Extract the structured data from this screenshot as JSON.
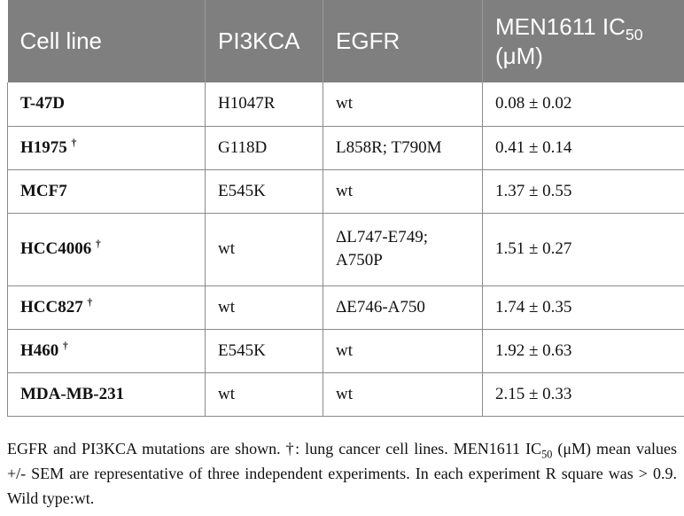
{
  "table": {
    "headers": {
      "cell_line": "Cell line",
      "pi3kca": "PI3KCA",
      "egfr": "EGFR",
      "ic50_prefix": "MEN1611 IC",
      "ic50_sub": "50",
      "ic50_unit": "(μM)"
    },
    "rows": [
      {
        "cell_line": "T-47D",
        "dagger": "",
        "pi3kca": "H1047R",
        "egfr": "wt",
        "egfr2": "",
        "ic50": "0.08 ± 0.02"
      },
      {
        "cell_line": "H1975",
        "dagger": "†",
        "pi3kca": "G118D",
        "egfr": "L858R; T790M",
        "egfr2": "",
        "ic50": "0.41 ± 0.14"
      },
      {
        "cell_line": "MCF7",
        "dagger": "",
        "pi3kca": "E545K",
        "egfr": "wt",
        "egfr2": "",
        "ic50": "1.37 ± 0.55"
      },
      {
        "cell_line": "HCC4006",
        "dagger": "†",
        "pi3kca": "wt",
        "egfr": "ΔL747-E749;",
        "egfr2": "A750P",
        "ic50": "1.51 ± 0.27"
      },
      {
        "cell_line": "HCC827",
        "dagger": "†",
        "pi3kca": "wt",
        "egfr": "ΔE746-A750",
        "egfr2": "",
        "ic50": "1.74 ± 0.35"
      },
      {
        "cell_line": "H460",
        "dagger": "†",
        "pi3kca": "E545K",
        "egfr": "wt",
        "egfr2": "",
        "ic50": "1.92 ± 0.63"
      },
      {
        "cell_line": "MDA-MB-231",
        "dagger": "",
        "pi3kca": "wt",
        "egfr": "wt",
        "egfr2": "",
        "ic50": "2.15 ± 0.33"
      }
    ]
  },
  "footnote": {
    "part1": "EGFR and PI3KCA mutations are shown. †: lung cancer cell lines. MEN1611 IC",
    "sub": "50",
    "part2": " (μM) mean values +/- SEM are representative of three independent experiments. In each experiment R square was > 0.9. Wild type:wt."
  }
}
